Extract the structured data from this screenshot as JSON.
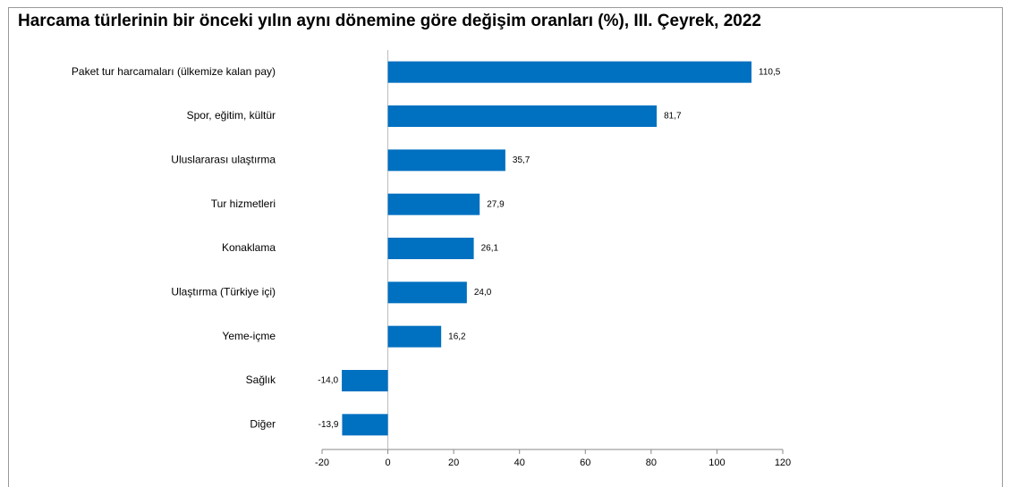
{
  "chart_data": {
    "type": "bar",
    "orientation": "horizontal",
    "title": "Harcama türlerinin bir önceki yılın aynı dönemine göre değişim oranları (%), III. Çeyrek, 2022",
    "categories": [
      "Paket tur harcamaları (ülkemize kalan pay)",
      "Spor, eğitim, kültür",
      "Uluslararası ulaştırma",
      "Tur hizmetleri",
      "Konaklama",
      "Ulaştırma (Türkiye içi)",
      "Yeme-içme",
      "Sağlık",
      "Diğer"
    ],
    "values": [
      110.5,
      81.7,
      35.7,
      27.9,
      26.1,
      24.0,
      16.2,
      -14.0,
      -13.9
    ],
    "value_labels": [
      "110,5",
      "81,7",
      "35,7",
      "27,9",
      "26,1",
      "24,0",
      "16,2",
      "-14,0",
      "-13,9"
    ],
    "color": "#0070c0",
    "xlim": [
      -20,
      120
    ],
    "xticks": [
      -20,
      0,
      20,
      40,
      60,
      80,
      100,
      120
    ],
    "grid": false
  }
}
